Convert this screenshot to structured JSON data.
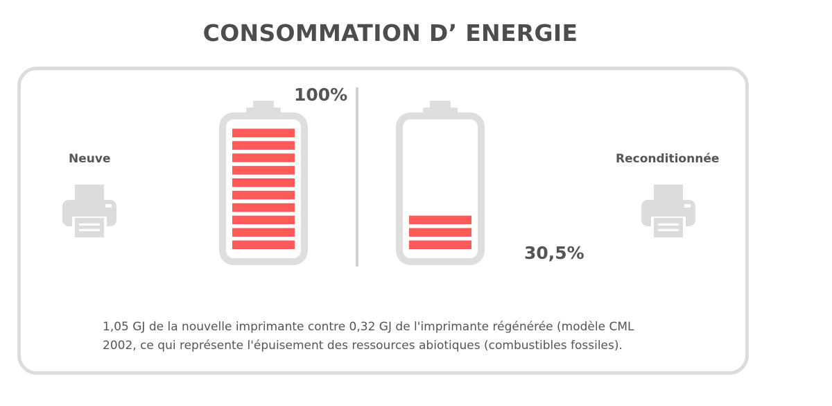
{
  "title": "CONSOMMATION D’ ENERGIE",
  "colors": {
    "fill": "#ff5a5a",
    "outline": "#dedede",
    "text": "#555555"
  },
  "left": {
    "label": "Neuve",
    "icon": "printer-icon"
  },
  "right": {
    "label": "Reconditionnée",
    "icon": "printer-icon"
  },
  "note": {
    "line1": "1,05 GJ de la nouvelle imprimante contre 0,32 GJ de l'imprimante régénérée (modèle CML",
    "line2": "2002, ce qui représente l'épuisement des ressources abiotiques (combustibles fossiles)."
  },
  "chart_data": {
    "type": "bar",
    "categories": [
      "Neuve",
      "Reconditionnée"
    ],
    "values": [
      100,
      30.5
    ],
    "value_labels": [
      "100%",
      "30,5%"
    ],
    "unit": "%",
    "ylim": [
      0,
      100
    ],
    "segments_full": 10
  }
}
